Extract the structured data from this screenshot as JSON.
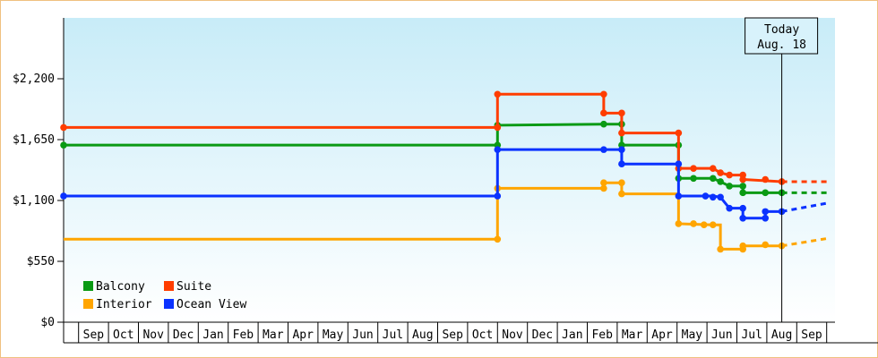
{
  "chart_data": {
    "type": "line",
    "step": true,
    "ylim": [
      0,
      2750
    ],
    "yticks": [
      {
        "v": 0,
        "label": "$0"
      },
      {
        "v": 550,
        "label": "$550"
      },
      {
        "v": 1100,
        "label": "$1,100"
      },
      {
        "v": 1650,
        "label": "$1,650"
      },
      {
        "v": 2200,
        "label": "$2,200"
      }
    ],
    "xlim": [
      0,
      28
    ],
    "months": [
      "Sep",
      "Oct",
      "Nov",
      "Dec",
      "Jan",
      "Feb",
      "Mar",
      "Apr",
      "May",
      "Jun",
      "Jul",
      "Aug",
      "Sep",
      "Oct",
      "Nov",
      "Dec",
      "Jan",
      "Feb",
      "Mar",
      "Apr",
      "May",
      "Jun",
      "Jul",
      "Aug",
      "Sep"
    ],
    "today": {
      "line1": "Today",
      "line2": "Aug. 18",
      "x": 24.0
    },
    "legend_position": "bottom-left",
    "series": [
      {
        "name": "Balcony",
        "color": "#0a9a14",
        "points": [
          [
            0,
            1600
          ],
          [
            14.5,
            1600
          ],
          [
            14.5,
            1780
          ],
          [
            18.05,
            1790
          ],
          [
            18.65,
            1790
          ],
          [
            18.65,
            1600
          ],
          [
            20.55,
            1600
          ],
          [
            20.55,
            1300
          ],
          [
            21.7,
            1300
          ],
          [
            21.95,
            1270
          ],
          [
            22.25,
            1230
          ],
          [
            22.7,
            1230
          ],
          [
            22.7,
            1170
          ],
          [
            24.0,
            1170
          ]
        ],
        "markers": [
          [
            0,
            1600
          ],
          [
            14.5,
            1600
          ],
          [
            14.5,
            1780
          ],
          [
            18.05,
            1790
          ],
          [
            18.65,
            1790
          ],
          [
            18.65,
            1600
          ],
          [
            20.55,
            1600
          ],
          [
            20.55,
            1300
          ],
          [
            21.05,
            1300
          ],
          [
            21.7,
            1300
          ],
          [
            21.95,
            1270
          ],
          [
            22.25,
            1230
          ],
          [
            22.7,
            1230
          ],
          [
            22.7,
            1170
          ],
          [
            23.45,
            1170
          ],
          [
            24.0,
            1170
          ]
        ],
        "projection": [
          [
            24.0,
            1170
          ],
          [
            25.6,
            1170
          ]
        ]
      },
      {
        "name": "Suite",
        "color": "#ff3d00",
        "points": [
          [
            0,
            1760
          ],
          [
            14.5,
            1760
          ],
          [
            14.5,
            2060
          ],
          [
            18.05,
            2060
          ],
          [
            18.05,
            1890
          ],
          [
            18.65,
            1890
          ],
          [
            18.65,
            1710
          ],
          [
            20.55,
            1710
          ],
          [
            20.55,
            1390
          ],
          [
            21.7,
            1390
          ],
          [
            21.95,
            1350
          ],
          [
            22.25,
            1330
          ],
          [
            22.7,
            1330
          ],
          [
            22.7,
            1290
          ],
          [
            24.0,
            1270
          ]
        ],
        "markers": [
          [
            0,
            1760
          ],
          [
            14.5,
            1760
          ],
          [
            14.5,
            2060
          ],
          [
            18.05,
            2060
          ],
          [
            18.05,
            1890
          ],
          [
            18.65,
            1890
          ],
          [
            18.65,
            1710
          ],
          [
            20.55,
            1710
          ],
          [
            20.55,
            1390
          ],
          [
            21.05,
            1390
          ],
          [
            21.7,
            1390
          ],
          [
            21.95,
            1350
          ],
          [
            22.25,
            1330
          ],
          [
            22.7,
            1330
          ],
          [
            22.7,
            1290
          ],
          [
            23.45,
            1290
          ],
          [
            24.0,
            1270
          ]
        ],
        "projection": [
          [
            24.0,
            1270
          ],
          [
            25.6,
            1270
          ]
        ]
      },
      {
        "name": "Interior",
        "color": "#ffa500",
        "points": [
          [
            0,
            750
          ],
          [
            14.5,
            750
          ],
          [
            14.5,
            1210
          ],
          [
            18.05,
            1210
          ],
          [
            18.05,
            1260
          ],
          [
            18.65,
            1260
          ],
          [
            18.65,
            1160
          ],
          [
            20.55,
            1160
          ],
          [
            20.55,
            890
          ],
          [
            21.7,
            880
          ],
          [
            21.95,
            880
          ],
          [
            21.95,
            660
          ],
          [
            22.7,
            660
          ],
          [
            22.7,
            690
          ],
          [
            24.0,
            690
          ]
        ],
        "markers": [
          [
            14.5,
            750
          ],
          [
            14.5,
            1210
          ],
          [
            18.05,
            1210
          ],
          [
            18.05,
            1260
          ],
          [
            18.65,
            1260
          ],
          [
            18.65,
            1160
          ],
          [
            20.55,
            890
          ],
          [
            21.05,
            890
          ],
          [
            21.4,
            880
          ],
          [
            21.7,
            880
          ],
          [
            21.95,
            660
          ],
          [
            22.7,
            660
          ],
          [
            22.7,
            690
          ],
          [
            23.45,
            700
          ],
          [
            24.0,
            690
          ]
        ],
        "projection": [
          [
            24.0,
            690
          ],
          [
            25.6,
            760
          ]
        ]
      },
      {
        "name": "Ocean View",
        "color": "#0a32ff",
        "points": [
          [
            0,
            1140
          ],
          [
            14.5,
            1140
          ],
          [
            14.5,
            1560
          ],
          [
            18.05,
            1560
          ],
          [
            18.65,
            1560
          ],
          [
            18.65,
            1430
          ],
          [
            20.55,
            1430
          ],
          [
            20.55,
            1140
          ],
          [
            21.7,
            1140
          ],
          [
            21.95,
            1130
          ],
          [
            22.25,
            1030
          ],
          [
            22.7,
            1030
          ],
          [
            22.7,
            940
          ],
          [
            23.45,
            940
          ],
          [
            23.45,
            1000
          ],
          [
            24.0,
            1000
          ]
        ],
        "markers": [
          [
            0,
            1140
          ],
          [
            14.5,
            1140
          ],
          [
            14.5,
            1560
          ],
          [
            18.05,
            1560
          ],
          [
            18.65,
            1560
          ],
          [
            18.65,
            1430
          ],
          [
            20.55,
            1430
          ],
          [
            20.55,
            1140
          ],
          [
            21.45,
            1140
          ],
          [
            21.7,
            1130
          ],
          [
            21.95,
            1130
          ],
          [
            22.25,
            1030
          ],
          [
            22.7,
            1030
          ],
          [
            22.7,
            940
          ],
          [
            23.45,
            940
          ],
          [
            23.45,
            1000
          ],
          [
            24.0,
            1000
          ]
        ],
        "projection": [
          [
            24.0,
            1000
          ],
          [
            25.6,
            1080
          ]
        ]
      }
    ]
  }
}
